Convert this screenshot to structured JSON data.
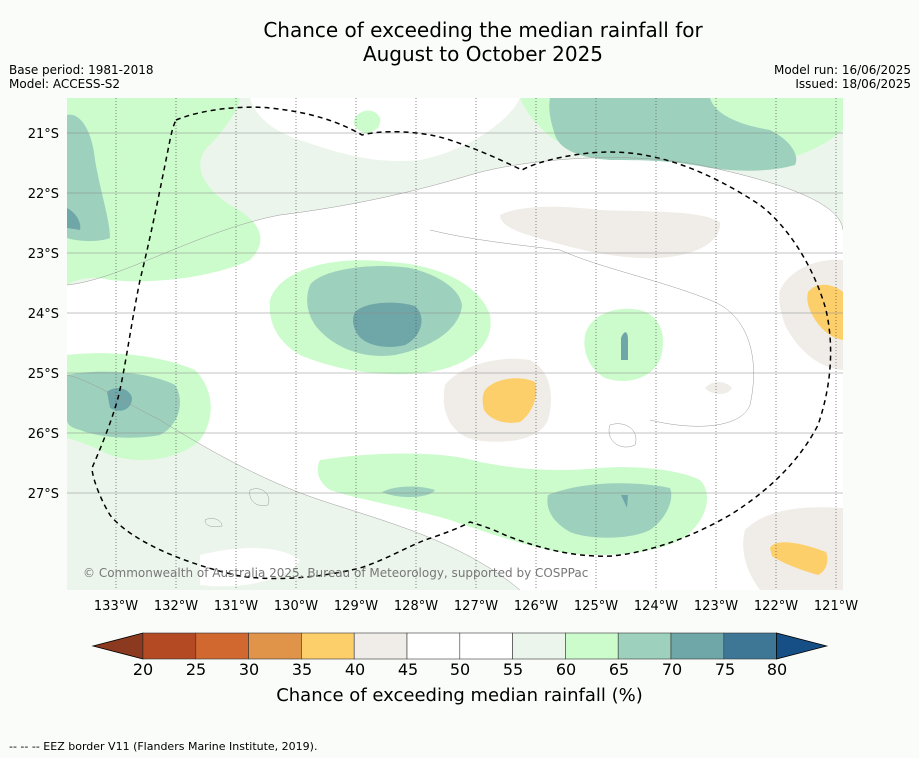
{
  "title_line1": "Chance of exceeding the median rainfall for",
  "title_line2": "August to October 2025",
  "meta": {
    "base_period": "Base period: 1981-2018",
    "model": "Model: ACCESS-S2",
    "model_run": "Model run: 16/06/2025",
    "issued": "Issued: 18/06/2025"
  },
  "copyright": "© Commonwealth of Australia 2025, Bureau of Meteorology, supported by COSPPac",
  "lon_labels": [
    "133°W",
    "132°W",
    "131°W",
    "130°W",
    "129°W",
    "128°W",
    "127°W",
    "126°W",
    "125°W",
    "124°W",
    "123°W",
    "122°W",
    "121°W"
  ],
  "lat_labels": [
    "21°S",
    "22°S",
    "23°S",
    "24°S",
    "25°S",
    "26°S",
    "27°S"
  ],
  "colorbar": {
    "ticks": [
      "20",
      "25",
      "30",
      "35",
      "40",
      "45",
      "50",
      "55",
      "60",
      "65",
      "70",
      "75",
      "80"
    ],
    "colors": [
      "#8b3a20",
      "#b34a24",
      "#d0682f",
      "#e0944a",
      "#fdcf6a",
      "#f0ede8",
      "#ffffff",
      "#ffffff",
      "#ecf5ec",
      "#ccfccc",
      "#9ed1bd",
      "#6fa7a9",
      "#3e7796",
      "#154f86"
    ],
    "title": "Chance of exceeding median rainfall (%)"
  },
  "footer": "-- -- -- EEZ border V11 (Flanders Marine Institute, 2019)."
}
